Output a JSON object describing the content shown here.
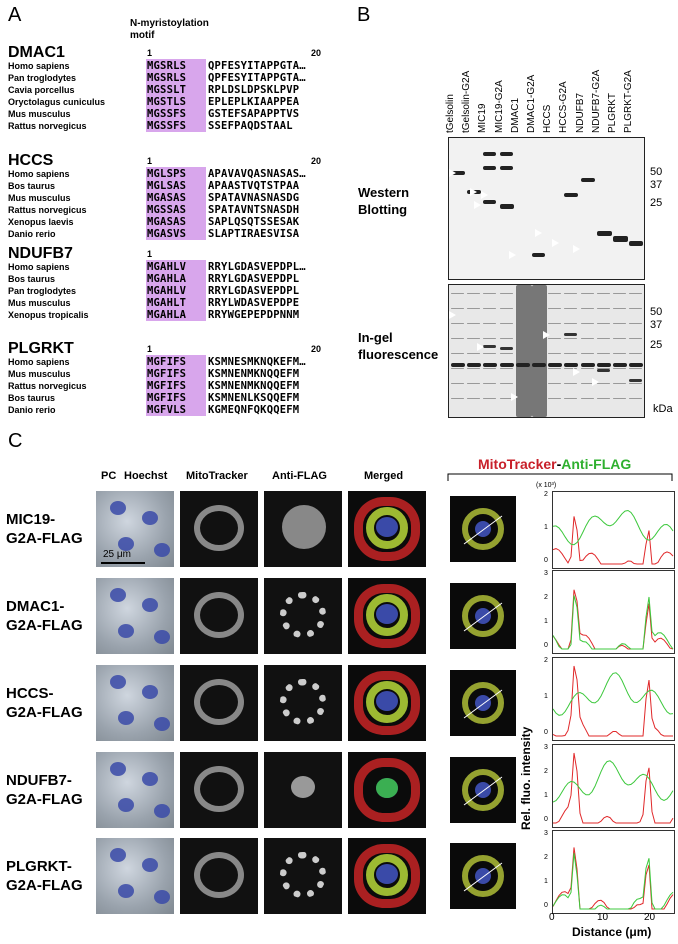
{
  "panelA": {
    "letter": "A",
    "motif_label_1": "N-myristoylation",
    "motif_label_2": "motif",
    "groups": [
      {
        "protein": "DMAC1",
        "start": "1",
        "end": "20",
        "rows": [
          {
            "species": "Homo sapiens",
            "motif": "MGSRLS",
            "rest": "QPFESYITAPPGTA…"
          },
          {
            "species": "Pan troglodytes",
            "motif": "MGSRLS",
            "rest": "QPFESYITAPPGTA…"
          },
          {
            "species": "Cavia porcellus",
            "motif": "MGSSLT",
            "rest": "RPLDSLDPSKLPVP"
          },
          {
            "species": "Oryctolagus cuniculus",
            "motif": "MGSTLS",
            "rest": "EPLEPLKIAAPPEA"
          },
          {
            "species": "Mus musculus",
            "motif": "MGSSFS",
            "rest": "GSTEFSAPAPPTVS"
          },
          {
            "species": "Rattus norvegicus",
            "motif": "MGSSFS",
            "rest": "SSEFPAQDSTAAL"
          }
        ]
      },
      {
        "protein": "HCCS",
        "start": "1",
        "end": "20",
        "rows": [
          {
            "species": "Homo sapiens",
            "motif": "MGLSPS",
            "rest": "APAVAVQASNASAS…"
          },
          {
            "species": "Bos taurus",
            "motif": "MGLSAS",
            "rest": "APAASTVQTSTPAA"
          },
          {
            "species": "Mus musculus",
            "motif": "MGASAS",
            "rest": "SPATAVNASNASDG"
          },
          {
            "species": "Rattus norvegicus",
            "motif": "MGSSAS",
            "rest": "SPATAVNTSNASDH"
          },
          {
            "species": "Xenopus laevis",
            "motif": "MGASAS",
            "rest": "SAPLQSQTSSESAK"
          },
          {
            "species": "Danio rerio",
            "motif": "MGASVS",
            "rest": "SLAPTIRAESVISA"
          }
        ]
      },
      {
        "protein": "NDUFB7",
        "start": "1",
        "end": "",
        "rows": [
          {
            "species": "Homo sapiens",
            "motif": "MGAHLV",
            "rest": "RRYLGDASVEPDPL…"
          },
          {
            "species": "Bos taurus",
            "motif": "MGAHLA",
            "rest": "RRYLGDASVEPDPL"
          },
          {
            "species": "Pan troglodytes",
            "motif": "MGAHLV",
            "rest": "RRYLGDASVEPDPL"
          },
          {
            "species": "Mus musculus",
            "motif": "MGAHLT",
            "rest": "RRYLWDASVEPDPE"
          },
          {
            "species": "Xenopus tropicalis",
            "motif": "MGAHLA",
            "rest": "RRYWGEPEPDPNNM"
          }
        ]
      },
      {
        "protein": "PLGRKT",
        "start": "1",
        "end": "20",
        "rows": [
          {
            "species": "Homo sapiens",
            "motif": "MGFIFS",
            "rest": "KSMNESMKNQKEFM…"
          },
          {
            "species": "Mus musculus",
            "motif": "MGFIFS",
            "rest": "KSMNENMKNQQEFM"
          },
          {
            "species": "Rattus norvegicus",
            "motif": "MGFIFS",
            "rest": "KSMNENMKNQQEFM"
          },
          {
            "species": "Bos taurus",
            "motif": "MGFIFS",
            "rest": "KSMNENLKSQQEFM"
          },
          {
            "species": "Danio rerio",
            "motif": "MGFVLS",
            "rest": "KGMEQNFQKQQEFM"
          }
        ]
      }
    ]
  },
  "panelB": {
    "letter": "B",
    "lanes": [
      "tGelsolin",
      "tGelsolin-G2A",
      "MIC19",
      "MIC19-G2A",
      "DMAC1",
      "DMAC1-G2A",
      "HCCS",
      "HCCS-G2A",
      "NDUFB7",
      "NDUFB7-G2A",
      "PLGRKT",
      "PLGRKT-G2A"
    ],
    "western_label_1": "Western",
    "western_label_2": "Blotting",
    "ingel_label_1": "In-gel",
    "ingel_label_2": "fluorescence",
    "mw_top": [
      "50",
      "37",
      "25"
    ],
    "mw_bottom": [
      "50",
      "37",
      "25"
    ],
    "unit": "kDa"
  },
  "panelC": {
    "letter": "C",
    "col_pc": "PC",
    "col_hoechst": "Hoechst",
    "col_mito": "MitoTracker",
    "col_flag": "Anti-FLAG",
    "col_merged": "Merged",
    "scale_bar": "25 μm",
    "profile_title_red": "MitoTracker",
    "profile_title_dash": "-",
    "profile_title_green": "Anti-FLAG",
    "y_multiplier": "(x 10³)",
    "y_axis_title": "Rel. fluo. intensity",
    "x_axis_title": "Distance (μm)",
    "x_ticks": [
      "0",
      "10",
      "20"
    ],
    "rows": [
      {
        "line1": "MIC19-",
        "line2": "G2A-FLAG",
        "yticks": [
          "2",
          "1",
          "0"
        ]
      },
      {
        "line1": "DMAC1-",
        "line2": "G2A-FLAG",
        "yticks": [
          "3",
          "2",
          "1",
          "0"
        ]
      },
      {
        "line1": "HCCS-",
        "line2": "G2A-FLAG",
        "yticks": [
          "2",
          "1",
          "0"
        ]
      },
      {
        "line1": "NDUFB7-",
        "line2": "G2A-FLAG",
        "yticks": [
          "3",
          "2",
          "1",
          "0"
        ]
      },
      {
        "line1": "PLGRKT-",
        "line2": "G2A-FLAG",
        "yticks": [
          "3",
          "2",
          "1",
          "0"
        ]
      }
    ],
    "colors": {
      "mito": "#e0282a",
      "flag": "#3cc83c",
      "hoechst": "#3a4aa8"
    }
  }
}
